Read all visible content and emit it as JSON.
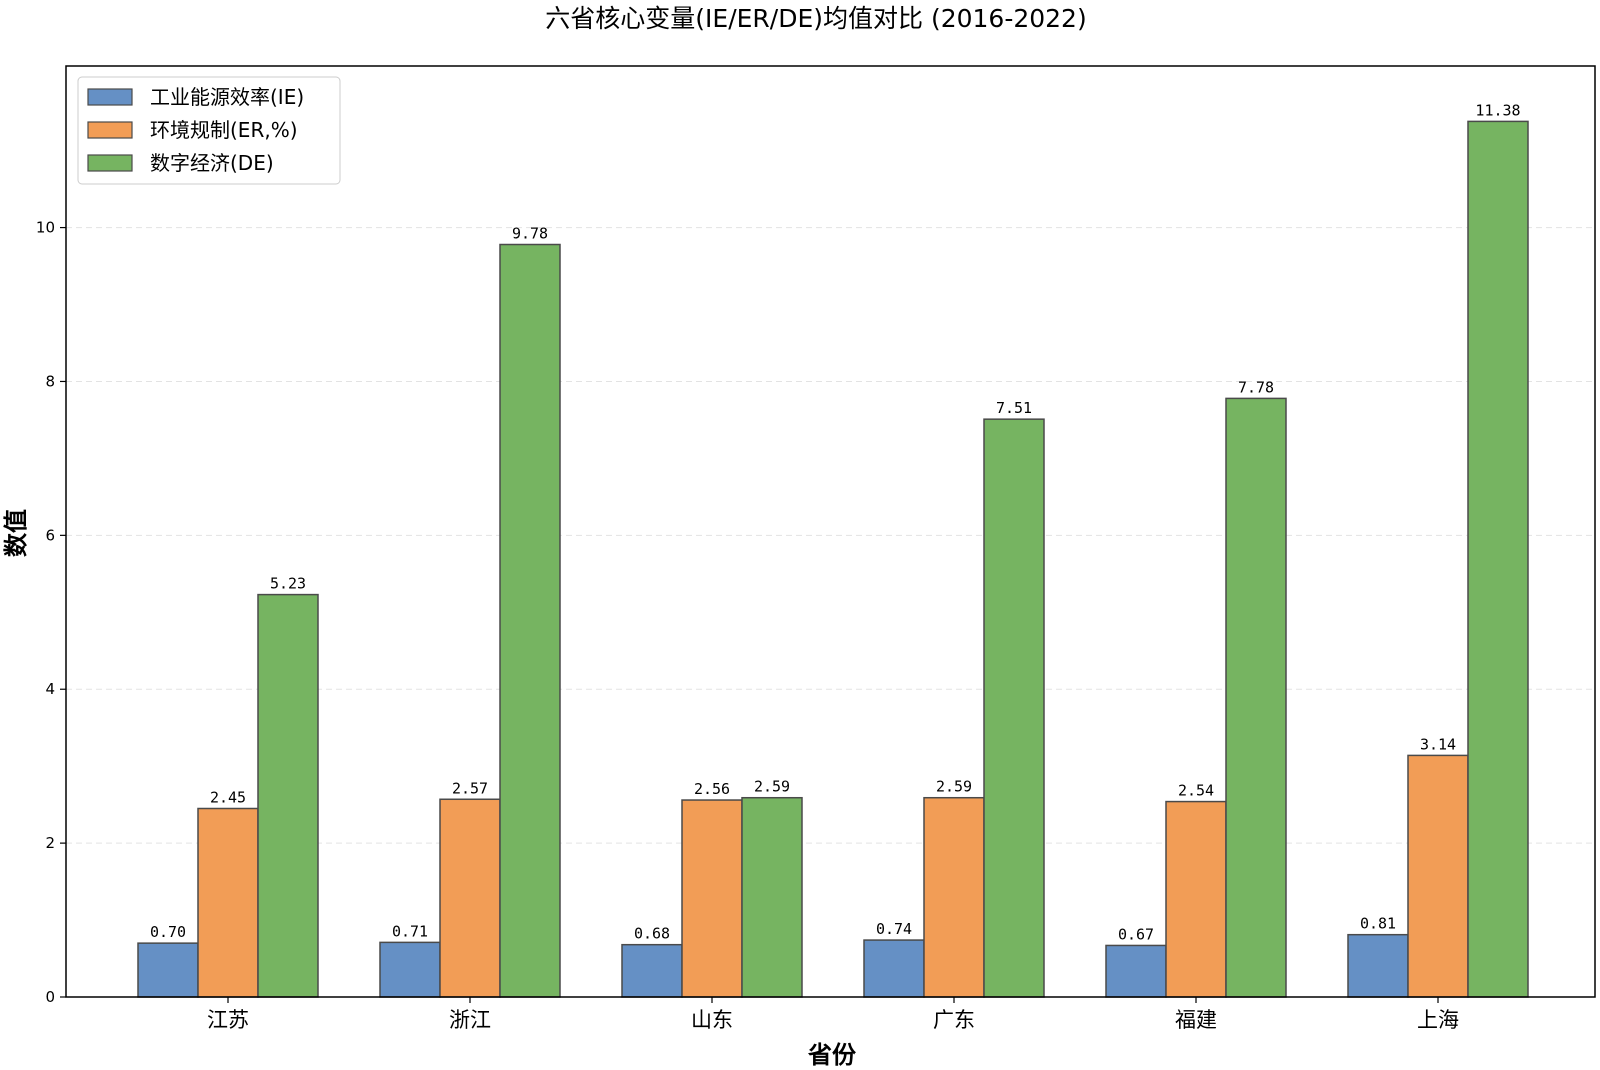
{
  "chart_data": {
    "type": "bar",
    "title": "六省核心变量(IE/ER/DE)均值对比 (2016-2022)",
    "xlabel": "省份",
    "ylabel": "数值",
    "categories": [
      "江苏",
      "浙江",
      "山东",
      "广东",
      "福建",
      "上海"
    ],
    "series": [
      {
        "name": "工业能源效率(IE)",
        "color": "#6590c5",
        "values": [
          0.7,
          0.71,
          0.68,
          0.74,
          0.67,
          0.81
        ],
        "labels": [
          "0.70",
          "0.71",
          "0.68",
          "0.74",
          "0.67",
          "0.81"
        ]
      },
      {
        "name": "环境规制(ER,%)",
        "color": "#f29d56",
        "values": [
          2.45,
          2.57,
          2.56,
          2.59,
          2.54,
          3.14
        ],
        "labels": [
          "2.45",
          "2.57",
          "2.56",
          "2.59",
          "2.54",
          "3.14"
        ]
      },
      {
        "name": "数字经济(DE)",
        "color": "#76b461",
        "values": [
          5.23,
          9.78,
          2.59,
          7.51,
          7.78,
          11.38
        ],
        "labels": [
          "5.23",
          "9.78",
          "2.59",
          "7.51",
          "7.78",
          "11.38"
        ]
      }
    ],
    "ylim": [
      0,
      12.1
    ],
    "yticks": [
      0,
      2,
      4,
      6,
      8,
      10
    ],
    "ytick_labels": [
      "0",
      "2",
      "4",
      "6",
      "8",
      "10"
    ],
    "grid": "y-dashed",
    "legend": "top-left",
    "colors": {
      "edge": "#4a4a4a",
      "grid": "#e3e3e3",
      "axis": "#000000"
    }
  }
}
